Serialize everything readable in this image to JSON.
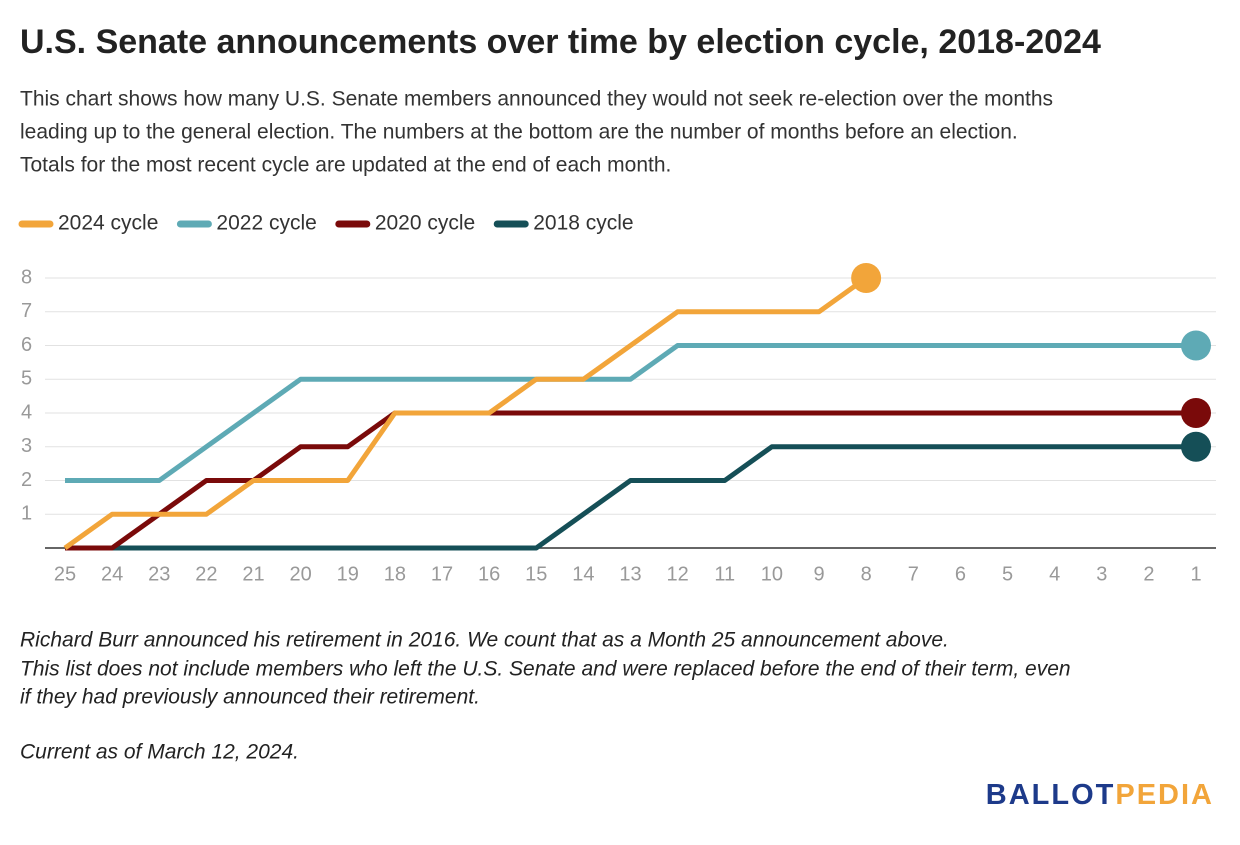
{
  "chart_data": {
    "type": "line",
    "title": "U.S. Senate announcements over time by election cycle, 2018-2024",
    "subtitle": [
      "This chart shows how many U.S. Senate members announced they would not seek re-election over the months",
      "leading up to the general election. The numbers at the bottom are the number of months before an election.",
      "Totals for the most recent cycle are updated at the end of each month."
    ],
    "categories": [
      "25",
      "24",
      "23",
      "22",
      "21",
      "20",
      "19",
      "18",
      "17",
      "16",
      "15",
      "14",
      "13",
      "12",
      "11",
      "10",
      "9",
      "8",
      "7",
      "6",
      "5",
      "4",
      "3",
      "2",
      "1"
    ],
    "series": [
      {
        "name": "2024 cycle",
        "color": "#f2a53a",
        "values": [
          0,
          1,
          1,
          1,
          2,
          2,
          2,
          4,
          4,
          4,
          5,
          5,
          6,
          7,
          7,
          7,
          7,
          8,
          null,
          null,
          null,
          null,
          null,
          null,
          null
        ]
      },
      {
        "name": "2022 cycle",
        "color": "#5eaab5",
        "values": [
          2,
          2,
          2,
          3,
          4,
          5,
          5,
          5,
          5,
          5,
          5,
          5,
          5,
          6,
          6,
          6,
          6,
          6,
          6,
          6,
          6,
          6,
          6,
          6,
          6
        ]
      },
      {
        "name": "2020 cycle",
        "color": "#7a0a0a",
        "values": [
          0,
          0,
          1,
          2,
          2,
          3,
          3,
          4,
          4,
          4,
          4,
          4,
          4,
          4,
          4,
          4,
          4,
          4,
          4,
          4,
          4,
          4,
          4,
          4,
          4
        ]
      },
      {
        "name": "2018 cycle",
        "color": "#154f57",
        "values": [
          0,
          0,
          0,
          0,
          0,
          0,
          0,
          0,
          0,
          0,
          0,
          1,
          2,
          2,
          2,
          3,
          3,
          3,
          3,
          3,
          3,
          3,
          3,
          3,
          3
        ]
      }
    ],
    "ylim": [
      0,
      8
    ],
    "yticks": [
      1,
      2,
      3,
      4,
      5,
      6,
      7,
      8
    ],
    "grid": true,
    "legend": "top-left",
    "notes": [
      "Richard Burr announced his retirement in 2016. We count that as a Month 25 announcement above.",
      "This list does not include members who left the U.S. Senate and were replaced before the end of their term, even",
      "if they had previously announced their retirement.",
      "Current as of March 12, 2024."
    ],
    "logo": [
      "BALLOT",
      "PEDIA"
    ]
  }
}
